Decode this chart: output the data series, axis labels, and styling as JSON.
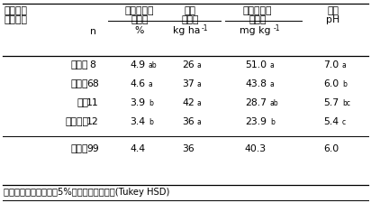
{
  "col_label_line1": "気候区分",
  "col_label_line2": "別平均値",
  "col_si_line1": "稲わらケイ",
  "col_si_line2": "素濃度",
  "col_n_line1": "窒素",
  "col_n_line2": "施用量",
  "col_soilsi_line1": "土壌ケイ酸",
  "col_soilsi_line2": "溶出量",
  "col_ph_line1": "土壌",
  "col_ph_line2": "pH",
  "unit_n": "n",
  "unit_si": "%",
  "unit_nkg": "kg ha",
  "unit_nkg_sup": "-1",
  "unit_mgkg": "mg kg",
  "unit_mgkg_sup": "-1",
  "rows": [
    {
      "label": "半乾燥",
      "n": "8",
      "si": "4.9",
      "si_sup": "ab",
      "nval": "26",
      "n_sup": "a",
      "soil": "51.0",
      "soil_sup": "a",
      "ph": "7.0",
      "ph_sup": "a"
    },
    {
      "label": "半湿潤",
      "n": "68",
      "si": "4.6",
      "si_sup": "a",
      "nval": "37",
      "n_sup": "a",
      "soil": "43.8",
      "soil_sup": "a",
      "ph": "6.0",
      "ph_sup": "b"
    },
    {
      "label": "湿潤",
      "n": "11",
      "si": "3.9",
      "si_sup": "b",
      "nval": "42",
      "n_sup": "a",
      "soil": "28.7",
      "soil_sup": "ab",
      "ph": "5.7",
      "ph_sup": "bc"
    },
    {
      "label": "熱帯高地",
      "n": "12",
      "si": "3.4",
      "si_sup": "b",
      "nval": "36",
      "n_sup": "a",
      "soil": "23.9",
      "soil_sup": "b",
      "ph": "5.4",
      "ph_sup": "c"
    },
    {
      "label": "全平均",
      "n": "99",
      "si": "4.4",
      "si_sup": "",
      "nval": "36",
      "n_sup": "",
      "soil": "40.3",
      "soil_sup": "",
      "ph": "6.0",
      "ph_sup": ""
    }
  ],
  "footnote": "同一アルファベットは5%水準で有意差なし(Tukey HSD)",
  "bg_color": "#ffffff",
  "text_color": "#000000"
}
